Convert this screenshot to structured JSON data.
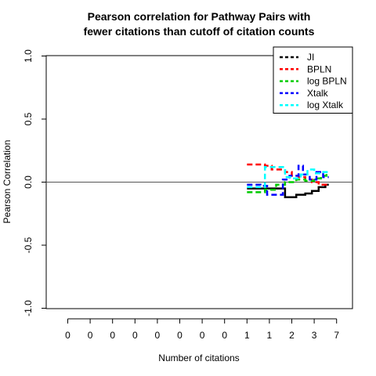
{
  "chart_data": {
    "type": "line",
    "title_lines": [
      "Pearson correlation for Pathway Pairs with",
      "fewer citations than cutoff of citation counts"
    ],
    "xlabel": "Number of citations",
    "ylabel": "Pearson Correlation",
    "x_tick_labels": [
      "0",
      "0",
      "0",
      "0",
      "0",
      "0",
      "0",
      "0",
      "1",
      "1",
      "2",
      "3",
      "7"
    ],
    "y_ticks": [
      -1.0,
      -0.5,
      0.0,
      0.5,
      1.0
    ],
    "y_tick_labels": [
      "-1.0",
      "-0.5",
      "0.0",
      "0.5",
      "1.0"
    ],
    "ylim": [
      -1.0,
      1.0
    ],
    "reference_line_y": 0.0,
    "legend_position": "top-right",
    "series": [
      {
        "name": "JI",
        "color": "#000000",
        "points": [
          [
            9.0,
            -0.05
          ],
          [
            10.0,
            -0.05
          ],
          [
            10.7,
            -0.05
          ],
          [
            10.7,
            -0.12
          ],
          [
            11.2,
            -0.12
          ],
          [
            11.2,
            -0.1
          ],
          [
            11.6,
            -0.1
          ],
          [
            11.6,
            -0.09
          ],
          [
            11.9,
            -0.09
          ],
          [
            11.9,
            -0.07
          ],
          [
            12.2,
            -0.07
          ],
          [
            12.2,
            -0.04
          ],
          [
            12.5,
            -0.04
          ],
          [
            12.5,
            -0.02
          ],
          [
            12.65,
            -0.02
          ]
        ]
      },
      {
        "name": "BPLN",
        "color": "#ff0000",
        "points": [
          [
            9.0,
            0.14
          ],
          [
            9.8,
            0.14
          ],
          [
            9.8,
            0.13
          ],
          [
            10.1,
            0.13
          ],
          [
            10.1,
            0.1
          ],
          [
            10.7,
            0.1
          ],
          [
            10.7,
            0.08
          ],
          [
            11.0,
            0.08
          ],
          [
            11.0,
            0.05
          ],
          [
            11.3,
            0.05
          ],
          [
            11.3,
            0.04
          ],
          [
            11.6,
            0.04
          ],
          [
            11.6,
            0.02
          ],
          [
            11.9,
            0.02
          ],
          [
            11.9,
            0.0
          ],
          [
            12.2,
            0.0
          ],
          [
            12.2,
            -0.02
          ],
          [
            12.65,
            -0.02
          ]
        ]
      },
      {
        "name": "log BPLN",
        "color": "#00cc00",
        "points": [
          [
            9.0,
            -0.08
          ],
          [
            9.8,
            -0.08
          ],
          [
            9.8,
            -0.06
          ],
          [
            10.3,
            -0.06
          ],
          [
            10.3,
            -0.02
          ],
          [
            10.7,
            -0.02
          ],
          [
            10.7,
            0.0
          ],
          [
            11.2,
            0.0
          ],
          [
            11.2,
            0.02
          ],
          [
            11.6,
            0.02
          ],
          [
            11.6,
            0.01
          ],
          [
            12.0,
            0.01
          ],
          [
            12.0,
            0.03
          ],
          [
            12.3,
            0.03
          ],
          [
            12.3,
            0.05
          ],
          [
            12.55,
            0.05
          ],
          [
            12.55,
            0.07
          ],
          [
            12.65,
            0.07
          ]
        ]
      },
      {
        "name": "Xtalk",
        "color": "#0000ff",
        "points": [
          [
            9.0,
            -0.02
          ],
          [
            9.6,
            -0.02
          ],
          [
            9.6,
            -0.03
          ],
          [
            9.9,
            -0.03
          ],
          [
            9.9,
            -0.1
          ],
          [
            10.6,
            -0.1
          ],
          [
            10.6,
            0.02
          ],
          [
            10.9,
            0.02
          ],
          [
            10.9,
            0.05
          ],
          [
            11.3,
            0.05
          ],
          [
            11.3,
            0.13
          ],
          [
            11.5,
            0.13
          ],
          [
            11.5,
            0.06
          ],
          [
            11.8,
            0.06
          ],
          [
            11.8,
            0.02
          ],
          [
            12.1,
            0.02
          ],
          [
            12.1,
            0.08
          ],
          [
            12.4,
            0.08
          ],
          [
            12.4,
            0.04
          ],
          [
            12.65,
            0.04
          ]
        ]
      },
      {
        "name": "log Xtalk",
        "color": "#00ffff",
        "points": [
          [
            9.0,
            -0.04
          ],
          [
            9.8,
            -0.04
          ],
          [
            9.8,
            0.12
          ],
          [
            10.7,
            0.12
          ],
          [
            10.7,
            0.04
          ],
          [
            11.0,
            0.04
          ],
          [
            11.0,
            0.03
          ],
          [
            11.4,
            0.03
          ],
          [
            11.4,
            0.06
          ],
          [
            11.7,
            0.06
          ],
          [
            11.7,
            0.1
          ],
          [
            12.0,
            0.1
          ],
          [
            12.0,
            0.07
          ],
          [
            12.3,
            0.07
          ],
          [
            12.3,
            0.08
          ],
          [
            12.65,
            0.08
          ]
        ]
      }
    ]
  }
}
